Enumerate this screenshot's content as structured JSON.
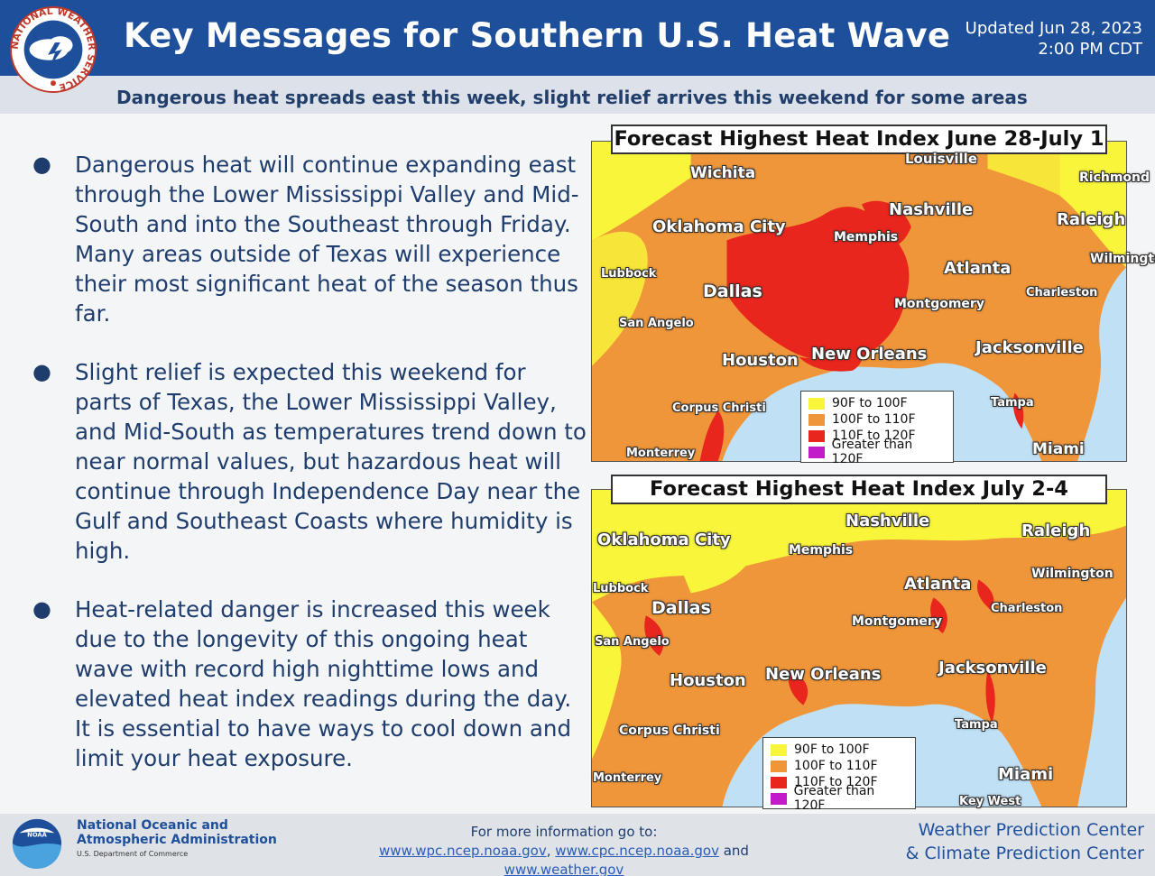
{
  "header": {
    "title": "Key Messages for Southern U.S. Heat Wave",
    "updated_line1": "Updated Jun 28, 2023",
    "updated_line2": "2:00 PM CDT",
    "logo_text": "NATIONAL WEATHER SERVICE"
  },
  "subtitle": "Dangerous heat spreads east this week, slight relief arrives this weekend for some areas",
  "bullets": [
    "Dangerous heat will continue expanding east through the Lower Mississippi Valley and Mid-South and into the Southeast through Friday. Many areas outside of Texas will experience their most significant heat of the season thus far.",
    "Slight relief is expected this weekend for parts of Texas, the Lower Mississippi Valley, and Mid-South as temperatures trend down to near normal values, but hazardous heat will continue through Independence Day near the Gulf and Southeast Coasts where humidity is high.",
    "Heat-related danger is increased this week due to the longevity of this ongoing heat wave with record high nighttime lows and elevated heat index readings during the day. It is essential to have ways to cool down and limit your heat exposure."
  ],
  "maps": [
    {
      "title": "Forecast Highest Heat Index June 28-July 1",
      "cities": [
        "Louisville",
        "Wichita",
        "Richmond",
        "Nashville",
        "Raleigh",
        "Oklahoma City",
        "Memphis",
        "Lubbock",
        "Atlanta",
        "Wilmington",
        "Dallas",
        "Charleston",
        "Montgomery",
        "San Angelo",
        "Houston",
        "New Orleans",
        "Jacksonville",
        "Tampa",
        "Corpus Christi",
        "Miami",
        "Monterrey"
      ]
    },
    {
      "title": "Forecast Highest Heat Index July 2-4",
      "cities": [
        "Nashville",
        "Raleigh",
        "Oklahoma City",
        "Memphis",
        "Wilmington",
        "Atlanta",
        "Lubbock",
        "Dallas",
        "Charleston",
        "Montgomery",
        "San Angelo",
        "Houston",
        "New Orleans",
        "Jacksonville",
        "Tampa",
        "Corpus Christi",
        "Miami",
        "Monterrey",
        "Key West"
      ]
    }
  ],
  "legend": [
    {
      "label": "90F to 100F",
      "color": "#f8f53a"
    },
    {
      "label": "100F to 110F",
      "color": "#f0963a"
    },
    {
      "label": "110F to 120F",
      "color": "#e8261e"
    },
    {
      "label": "Greater than 120F",
      "color": "#c21cc9"
    }
  ],
  "footer": {
    "noaa_line1": "National Oceanic and",
    "noaa_line2": "Atmospheric Administration",
    "noaa_sub": "U.S. Department of Commerce",
    "noaa_logo_text": "NOAA",
    "moreinfo_label": "For more information go to:",
    "link1": "www.wpc.ncep.noaa.gov",
    "sep1": ",",
    "link2": "www.cpc.ncep.noaa.gov",
    "sep2": "and",
    "link3": "www.weather.gov",
    "wpc_line1": "Weather Prediction Center",
    "wpc_line2": "& Climate Prediction Center"
  }
}
